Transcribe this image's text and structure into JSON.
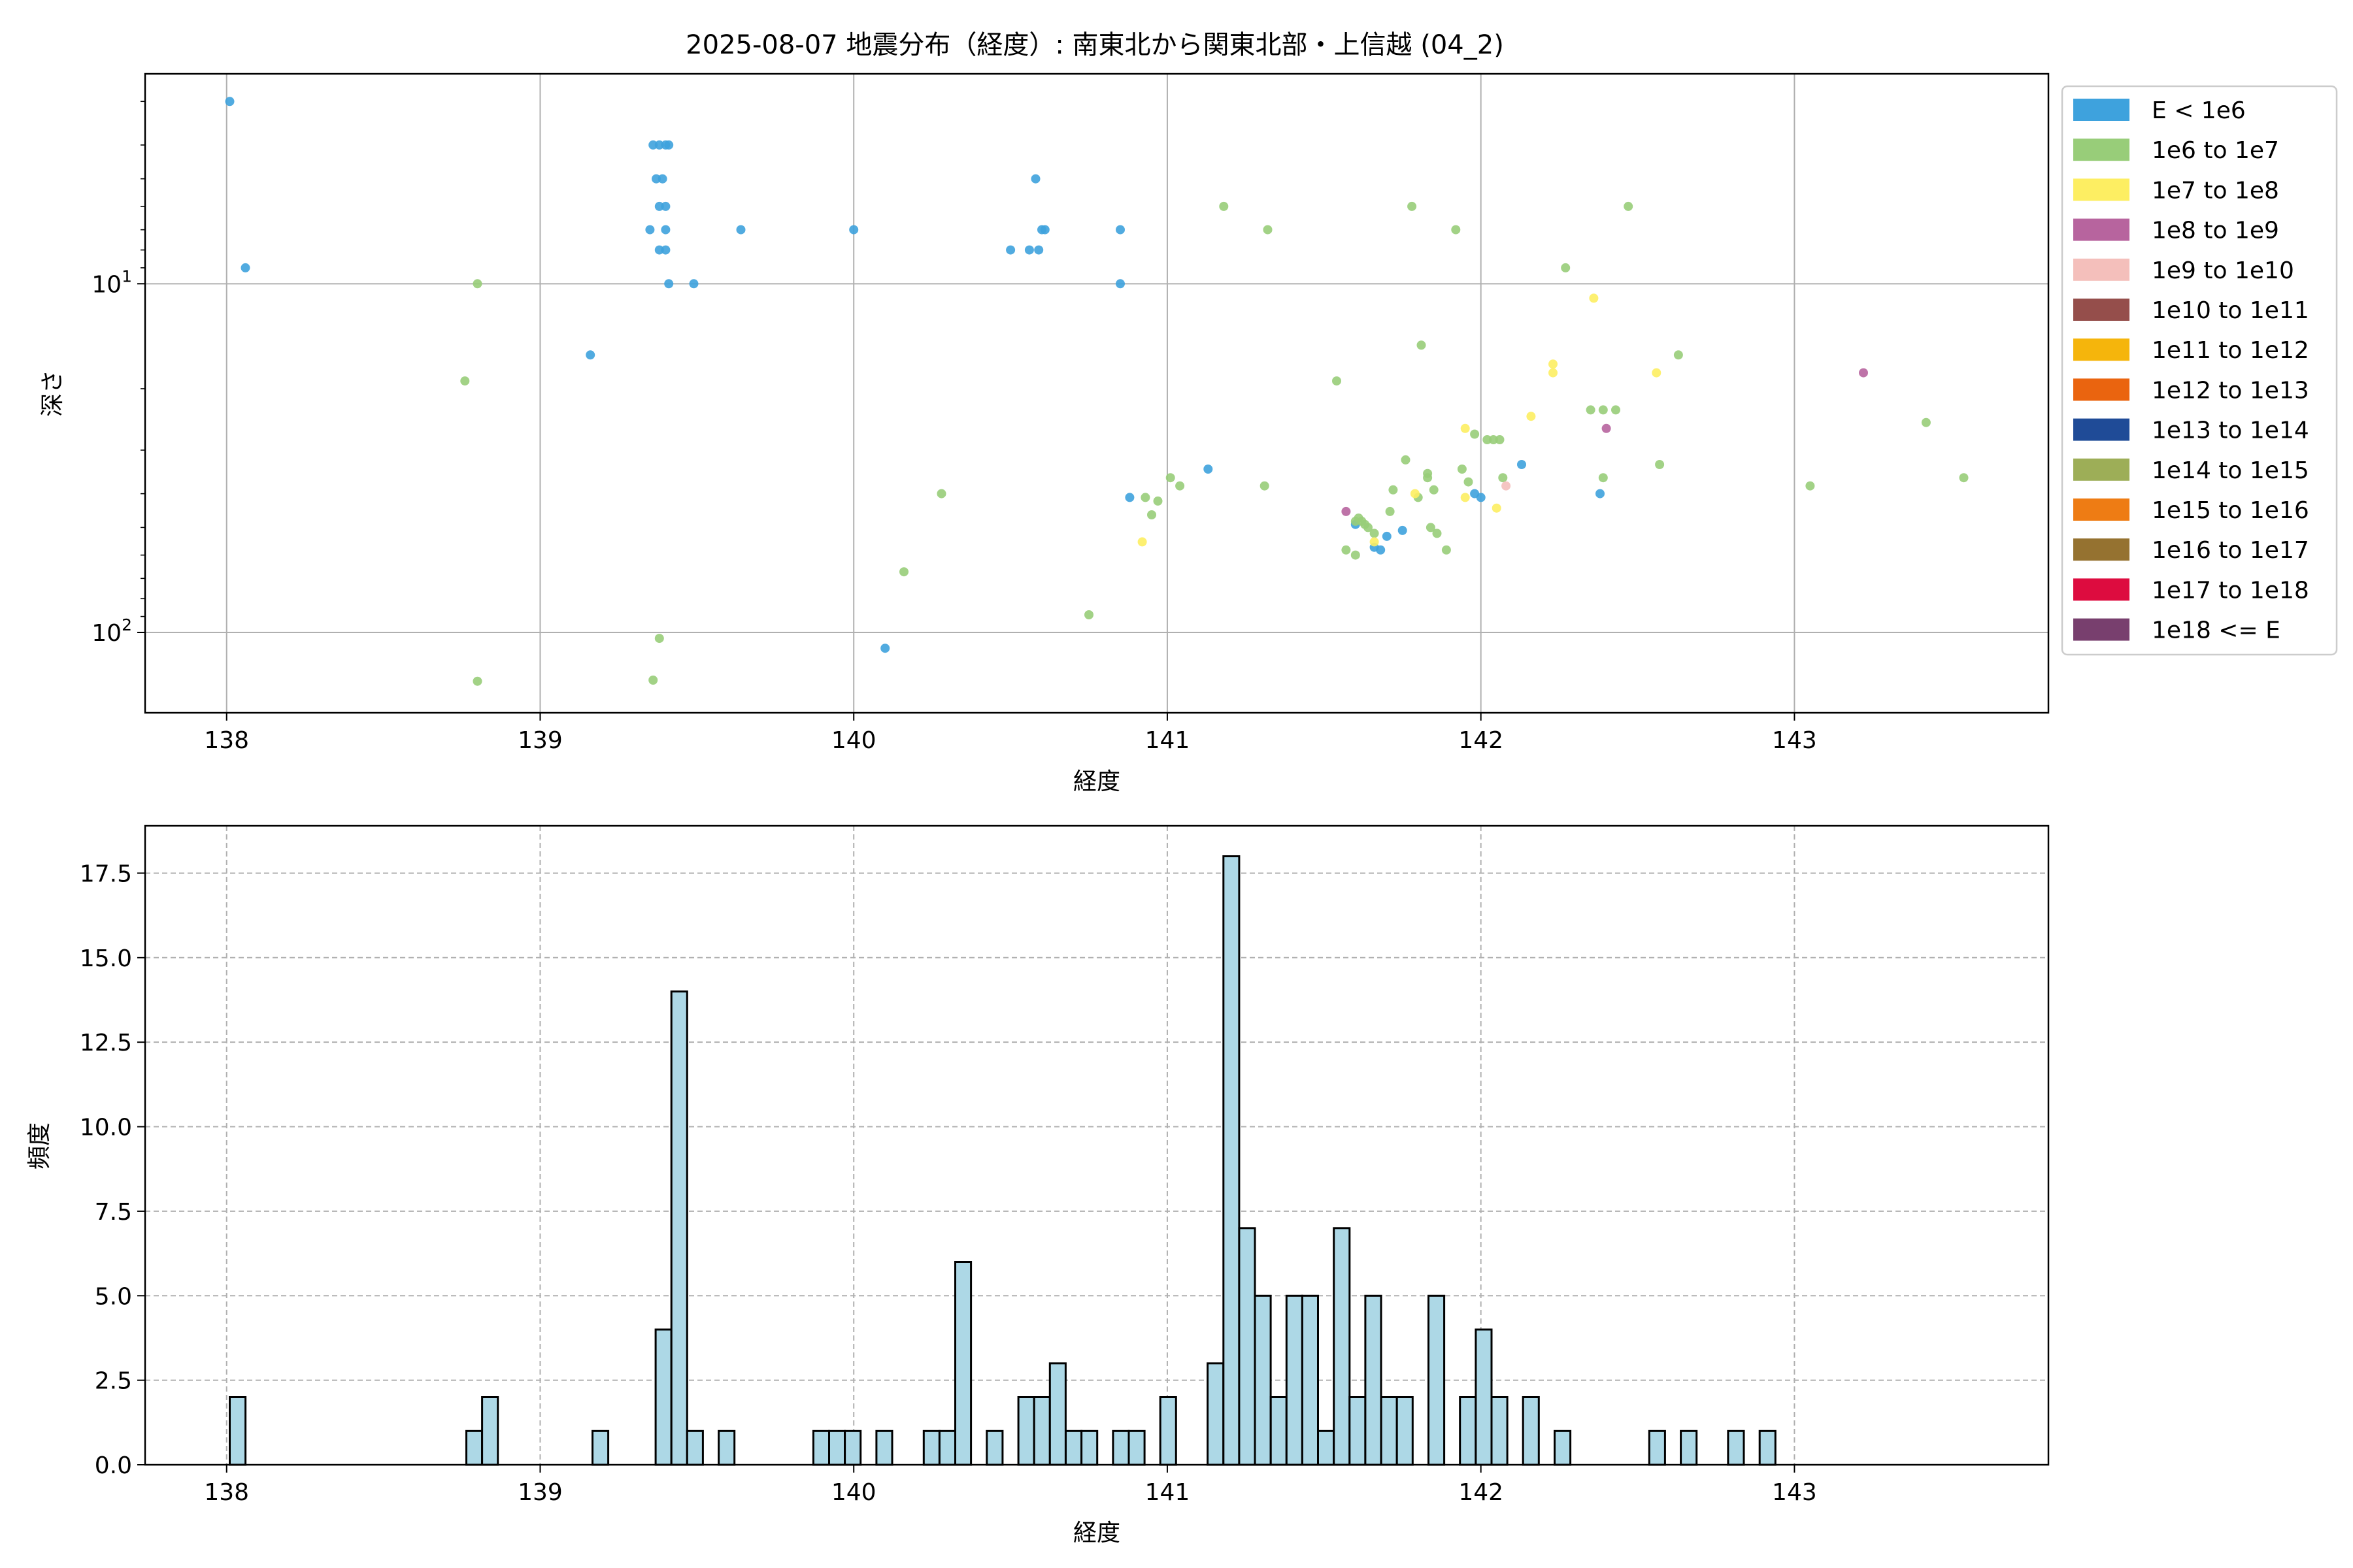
{
  "figure": {
    "title": "2025-08-07 地震分布（経度）: 南東北から関東北部・上信越 (04_2)"
  },
  "chart_data": [
    {
      "type": "scatter",
      "xlabel": "経度",
      "ylabel": "深さ",
      "x_ticks": [
        "138",
        "139",
        "140",
        "141",
        "142",
        "143"
      ],
      "x_tick_values": [
        138,
        139,
        140,
        141,
        142,
        143
      ],
      "xlim": [
        137.74,
        143.81
      ],
      "y_scale": "log",
      "y_inverted": true,
      "ylim_top": 2.5,
      "ylim_bottom": 170,
      "y_ticks": [
        {
          "value": 10,
          "base": "10",
          "exp": "1"
        },
        {
          "value": 100,
          "base": "10",
          "exp": "2"
        }
      ],
      "grid": true,
      "legend_position": "outside-right",
      "legend": [
        {
          "label": "E < 1e6",
          "color": "#3ea2dd"
        },
        {
          "label": "1e6 to 1e7",
          "color": "#98cd79"
        },
        {
          "label": "1e7 to 1e8",
          "color": "#fdee62"
        },
        {
          "label": "1e8 to 1e9",
          "color": "#b7649e"
        },
        {
          "label": "1e9 to 1e10",
          "color": "#f4bfbb"
        },
        {
          "label": "1e10 to 1e11",
          "color": "#954e4b"
        },
        {
          "label": "1e11 to 1e12",
          "color": "#f5b50c"
        },
        {
          "label": "1e12 to 1e13",
          "color": "#ea640f"
        },
        {
          "label": "1e13 to 1e14",
          "color": "#1f4b97"
        },
        {
          "label": "1e14 to 1e15",
          "color": "#9dae57"
        },
        {
          "label": "1e15 to 1e16",
          "color": "#ee7c14"
        },
        {
          "label": "1e16 to 1e17",
          "color": "#957230"
        },
        {
          "label": "1e17 to 1e18",
          "color": "#dd0c3f"
        },
        {
          "label": "1e18 <= E",
          "color": "#783f6e"
        }
      ],
      "points": [
        {
          "x": 138.01,
          "y": 3,
          "c": 0
        },
        {
          "x": 138.06,
          "y": 9,
          "c": 0
        },
        {
          "x": 139.16,
          "y": 16,
          "c": 0
        },
        {
          "x": 139.36,
          "y": 4,
          "c": 0
        },
        {
          "x": 139.38,
          "y": 4,
          "c": 0
        },
        {
          "x": 139.4,
          "y": 4,
          "c": 0
        },
        {
          "x": 139.41,
          "y": 4,
          "c": 0
        },
        {
          "x": 139.37,
          "y": 5,
          "c": 0
        },
        {
          "x": 139.39,
          "y": 5,
          "c": 0
        },
        {
          "x": 139.38,
          "y": 6,
          "c": 0
        },
        {
          "x": 139.4,
          "y": 6,
          "c": 0
        },
        {
          "x": 139.35,
          "y": 7,
          "c": 0
        },
        {
          "x": 139.4,
          "y": 7,
          "c": 0
        },
        {
          "x": 139.38,
          "y": 8,
          "c": 0
        },
        {
          "x": 139.4,
          "y": 8,
          "c": 0
        },
        {
          "x": 139.41,
          "y": 10,
          "c": 0
        },
        {
          "x": 139.49,
          "y": 10,
          "c": 0
        },
        {
          "x": 139.64,
          "y": 7,
          "c": 0
        },
        {
          "x": 140.0,
          "y": 7,
          "c": 0
        },
        {
          "x": 140.1,
          "y": 111,
          "c": 0
        },
        {
          "x": 140.5,
          "y": 8,
          "c": 0
        },
        {
          "x": 140.56,
          "y": 8,
          "c": 0
        },
        {
          "x": 140.59,
          "y": 8,
          "c": 0
        },
        {
          "x": 140.6,
          "y": 7,
          "c": 0
        },
        {
          "x": 140.61,
          "y": 7,
          "c": 0
        },
        {
          "x": 140.58,
          "y": 5,
          "c": 0
        },
        {
          "x": 140.85,
          "y": 7,
          "c": 0
        },
        {
          "x": 140.85,
          "y": 10,
          "c": 0
        },
        {
          "x": 140.88,
          "y": 41,
          "c": 0
        },
        {
          "x": 141.13,
          "y": 34,
          "c": 0
        },
        {
          "x": 141.6,
          "y": 49,
          "c": 0
        },
        {
          "x": 141.66,
          "y": 57,
          "c": 0
        },
        {
          "x": 141.68,
          "y": 58,
          "c": 0
        },
        {
          "x": 141.7,
          "y": 53,
          "c": 0
        },
        {
          "x": 141.75,
          "y": 51,
          "c": 0
        },
        {
          "x": 141.98,
          "y": 40,
          "c": 0
        },
        {
          "x": 142.0,
          "y": 41,
          "c": 0
        },
        {
          "x": 142.13,
          "y": 33,
          "c": 0
        },
        {
          "x": 142.38,
          "y": 40,
          "c": 0
        },
        {
          "x": 138.8,
          "y": 10,
          "c": 1
        },
        {
          "x": 138.76,
          "y": 19,
          "c": 1
        },
        {
          "x": 138.8,
          "y": 138,
          "c": 1
        },
        {
          "x": 139.36,
          "y": 137,
          "c": 1
        },
        {
          "x": 139.38,
          "y": 104,
          "c": 1
        },
        {
          "x": 140.16,
          "y": 67,
          "c": 1
        },
        {
          "x": 140.28,
          "y": 40,
          "c": 1
        },
        {
          "x": 140.75,
          "y": 89,
          "c": 1
        },
        {
          "x": 140.93,
          "y": 41,
          "c": 1
        },
        {
          "x": 140.95,
          "y": 46,
          "c": 1
        },
        {
          "x": 140.97,
          "y": 42,
          "c": 1
        },
        {
          "x": 141.01,
          "y": 36,
          "c": 1
        },
        {
          "x": 141.04,
          "y": 38,
          "c": 1
        },
        {
          "x": 141.18,
          "y": 6,
          "c": 1
        },
        {
          "x": 141.32,
          "y": 7,
          "c": 1
        },
        {
          "x": 141.31,
          "y": 38,
          "c": 1
        },
        {
          "x": 141.54,
          "y": 19,
          "c": 1
        },
        {
          "x": 141.57,
          "y": 58,
          "c": 1
        },
        {
          "x": 141.6,
          "y": 48,
          "c": 1
        },
        {
          "x": 141.61,
          "y": 47,
          "c": 1
        },
        {
          "x": 141.62,
          "y": 48,
          "c": 1
        },
        {
          "x": 141.63,
          "y": 49,
          "c": 1
        },
        {
          "x": 141.64,
          "y": 50,
          "c": 1
        },
        {
          "x": 141.66,
          "y": 52,
          "c": 1
        },
        {
          "x": 141.6,
          "y": 60,
          "c": 1
        },
        {
          "x": 141.72,
          "y": 39,
          "c": 1
        },
        {
          "x": 141.71,
          "y": 45,
          "c": 1
        },
        {
          "x": 141.76,
          "y": 32,
          "c": 1
        },
        {
          "x": 141.78,
          "y": 6,
          "c": 1
        },
        {
          "x": 141.8,
          "y": 41,
          "c": 1
        },
        {
          "x": 141.83,
          "y": 35,
          "c": 1
        },
        {
          "x": 141.83,
          "y": 36,
          "c": 1
        },
        {
          "x": 141.81,
          "y": 15,
          "c": 1
        },
        {
          "x": 141.84,
          "y": 50,
          "c": 1
        },
        {
          "x": 141.85,
          "y": 39,
          "c": 1
        },
        {
          "x": 141.86,
          "y": 52,
          "c": 1
        },
        {
          "x": 141.89,
          "y": 58,
          "c": 1
        },
        {
          "x": 141.92,
          "y": 7,
          "c": 1
        },
        {
          "x": 141.94,
          "y": 34,
          "c": 1
        },
        {
          "x": 141.96,
          "y": 37,
          "c": 1
        },
        {
          "x": 141.98,
          "y": 27,
          "c": 1
        },
        {
          "x": 142.02,
          "y": 28,
          "c": 1
        },
        {
          "x": 142.04,
          "y": 28,
          "c": 1
        },
        {
          "x": 142.06,
          "y": 28,
          "c": 1
        },
        {
          "x": 142.07,
          "y": 36,
          "c": 1
        },
        {
          "x": 142.27,
          "y": 9,
          "c": 1
        },
        {
          "x": 142.35,
          "y": 23,
          "c": 1
        },
        {
          "x": 142.39,
          "y": 23,
          "c": 1
        },
        {
          "x": 142.43,
          "y": 23,
          "c": 1
        },
        {
          "x": 142.39,
          "y": 36,
          "c": 1
        },
        {
          "x": 142.47,
          "y": 6,
          "c": 1
        },
        {
          "x": 142.57,
          "y": 33,
          "c": 1
        },
        {
          "x": 142.63,
          "y": 16,
          "c": 1
        },
        {
          "x": 143.05,
          "y": 38,
          "c": 1
        },
        {
          "x": 143.42,
          "y": 25,
          "c": 1
        },
        {
          "x": 143.54,
          "y": 36,
          "c": 1
        },
        {
          "x": 140.92,
          "y": 55,
          "c": 2
        },
        {
          "x": 141.66,
          "y": 55,
          "c": 2
        },
        {
          "x": 141.79,
          "y": 40,
          "c": 2
        },
        {
          "x": 141.95,
          "y": 26,
          "c": 2
        },
        {
          "x": 141.95,
          "y": 41,
          "c": 2
        },
        {
          "x": 142.05,
          "y": 44,
          "c": 2
        },
        {
          "x": 142.16,
          "y": 24,
          "c": 2
        },
        {
          "x": 142.23,
          "y": 17,
          "c": 2
        },
        {
          "x": 142.23,
          "y": 18,
          "c": 2
        },
        {
          "x": 142.36,
          "y": 11,
          "c": 2
        },
        {
          "x": 142.56,
          "y": 18,
          "c": 2
        },
        {
          "x": 141.57,
          "y": 45,
          "c": 3
        },
        {
          "x": 142.4,
          "y": 26,
          "c": 3
        },
        {
          "x": 143.22,
          "y": 18,
          "c": 3
        },
        {
          "x": 142.08,
          "y": 38,
          "c": 4
        }
      ]
    },
    {
      "type": "bar",
      "xlabel": "経度",
      "ylabel": "頻度",
      "x_ticks": [
        "138",
        "139",
        "140",
        "141",
        "142",
        "143"
      ],
      "x_tick_values": [
        138,
        139,
        140,
        141,
        142,
        143
      ],
      "xlim": [
        137.74,
        143.81
      ],
      "ylim": [
        0,
        18.9
      ],
      "y_ticks": [
        "0.0",
        "2.5",
        "5.0",
        "7.5",
        "10.0",
        "12.5",
        "15.0",
        "17.5"
      ],
      "y_tick_values": [
        0,
        2.5,
        5,
        7.5,
        10,
        12.5,
        15,
        17.5
      ],
      "grid": true,
      "bar_color": "#add8e6",
      "bin_start": 138.01,
      "bin_width": 0.0503,
      "values": [
        2,
        0,
        0,
        0,
        0,
        0,
        0,
        0,
        0,
        0,
        0,
        0,
        0,
        0,
        0,
        1,
        2,
        0,
        0,
        0,
        0,
        0,
        0,
        1,
        0,
        0,
        0,
        4,
        14,
        1,
        0,
        1,
        0,
        0,
        0,
        0,
        0,
        1,
        1,
        1,
        0,
        1,
        0,
        0,
        1,
        1,
        6,
        0,
        1,
        0,
        2,
        2,
        3,
        1,
        1,
        0,
        1,
        1,
        0,
        2,
        0,
        0,
        3,
        18,
        7,
        5,
        2,
        5,
        5,
        1,
        7,
        2,
        5,
        2,
        2,
        0,
        5,
        0,
        2,
        4,
        2,
        0,
        2,
        0,
        1,
        0,
        0,
        0,
        0,
        0,
        1,
        0,
        1,
        0,
        0,
        1,
        0,
        1
      ]
    }
  ]
}
